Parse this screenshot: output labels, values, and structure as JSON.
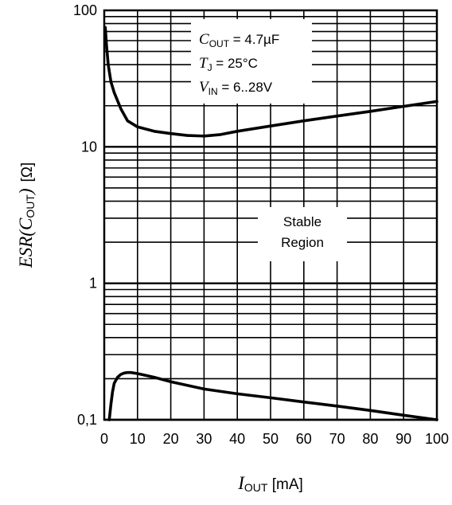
{
  "chart_data": {
    "type": "line",
    "title": "",
    "xlabel": {
      "main": "I",
      "sub": "OUT",
      "unit": " [mA]"
    },
    "ylabel": {
      "main": "ESR(C",
      "sub": "OUT",
      "tail": ")",
      "unit": "[Ω]"
    },
    "xlim": [
      0,
      100
    ],
    "ylim": [
      0.1,
      100
    ],
    "yscale": "log",
    "grid": true,
    "x_ticks": [
      0,
      10,
      20,
      30,
      40,
      50,
      60,
      70,
      80,
      90,
      100
    ],
    "x_tick_labels": [
      "0",
      "10",
      "20",
      "30",
      "40",
      "50",
      "60",
      "70",
      "80",
      "90",
      "100"
    ],
    "y_ticks": [
      0.1,
      1,
      10,
      100
    ],
    "y_tick_labels": [
      "0,1",
      "1",
      "10",
      "100"
    ],
    "series": [
      {
        "x": [
          0.3,
          0.7,
          1.2,
          2,
          3,
          5,
          7,
          10,
          15,
          20,
          25,
          30,
          35,
          40,
          50,
          60,
          70,
          80,
          90,
          100
        ],
        "y": [
          75,
          55,
          40,
          30,
          25,
          19,
          15.5,
          14,
          13,
          12.5,
          12.1,
          12,
          12.3,
          13,
          14.2,
          15.5,
          16.8,
          18.2,
          19.8,
          21.5
        ]
      },
      {
        "x": [
          1.5,
          2,
          2.5,
          3,
          4,
          5,
          6,
          7,
          8,
          10,
          15,
          20,
          30,
          40,
          50,
          60,
          70,
          80,
          90,
          100
        ],
        "y": [
          0.1,
          0.13,
          0.16,
          0.185,
          0.205,
          0.215,
          0.22,
          0.222,
          0.222,
          0.218,
          0.205,
          0.19,
          0.168,
          0.155,
          0.145,
          0.135,
          0.126,
          0.117,
          0.108,
          0.1
        ]
      }
    ],
    "annotations": {
      "conditions": [
        {
          "sym": "C",
          "sub": "OUT",
          "text": " = 4.7µF"
        },
        {
          "sym": "T",
          "sub": "J",
          "text": " = 25°C"
        },
        {
          "sym": "V",
          "sub": "IN",
          "text": " = 6..28V"
        }
      ],
      "region": [
        "Stable",
        "Region"
      ]
    }
  }
}
